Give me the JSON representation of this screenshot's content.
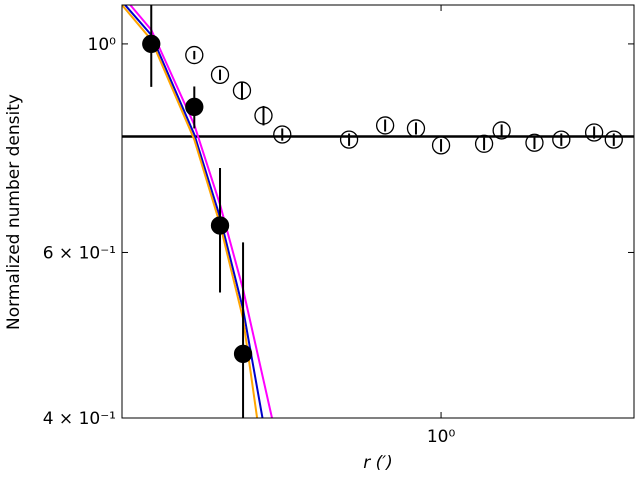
{
  "chart_data": {
    "type": "scatter",
    "xlabel": "r (′)",
    "ylabel": "Normalized number density",
    "xscale": "log",
    "yscale": "log",
    "xlim": [
      0.17,
      2.92
    ],
    "ylim": [
      0.4,
      1.1
    ],
    "xticks": [
      {
        "value": 1,
        "label": "10⁰"
      }
    ],
    "yticks": [
      {
        "value": 0.4,
        "label": "4 × 10⁻¹"
      },
      {
        "value": 0.6,
        "label": "6 × 10⁻¹"
      },
      {
        "value": 1,
        "label": "10⁰"
      }
    ],
    "hline": 0.797,
    "series": [
      {
        "kind": "points",
        "fill": "filled",
        "color": "#000000",
        "x": [
          0.2,
          0.254,
          0.293,
          0.333
        ],
        "values": [
          1.0,
          0.857,
          0.641,
          0.468
        ],
        "errors": [
          0.1,
          0.044,
          0.097,
          0.147
        ]
      },
      {
        "kind": "points",
        "fill": "open",
        "color": "#000000",
        "x": [
          0.254,
          0.293,
          0.331,
          0.373,
          0.414,
          0.6,
          0.733,
          0.87,
          1.0,
          1.27,
          1.4,
          1.68,
          1.95,
          2.34,
          2.61
        ],
        "values": [
          0.973,
          0.927,
          0.892,
          0.839,
          0.801,
          0.791,
          0.819,
          0.813,
          0.78,
          0.783,
          0.809,
          0.785,
          0.791,
          0.805,
          0.791
        ],
        "errors": [
          0.01,
          0.012,
          0.02,
          0.02,
          0.012,
          0.012,
          0.012,
          0.012,
          0.012,
          0.012,
          0.012,
          0.012,
          0.012,
          0.012,
          0.012
        ]
      },
      {
        "kind": "line",
        "color": "#ff00ff",
        "x": [
          0.178,
          0.2,
          0.254,
          0.293,
          0.333,
          0.391
        ],
        "values": [
          1.1,
          1.035,
          0.82,
          0.675,
          0.548,
          0.4
        ]
      },
      {
        "kind": "line",
        "color": "#0000cc",
        "x": [
          0.173,
          0.2,
          0.254,
          0.293,
          0.333,
          0.371
        ],
        "values": [
          1.1,
          1.022,
          0.801,
          0.654,
          0.522,
          0.4
        ]
      },
      {
        "kind": "line",
        "color": "#ffa500",
        "x": [
          0.17,
          0.2,
          0.254,
          0.293,
          0.333,
          0.36
        ],
        "values": [
          1.1,
          1.01,
          0.791,
          0.643,
          0.51,
          0.4
        ]
      }
    ]
  }
}
